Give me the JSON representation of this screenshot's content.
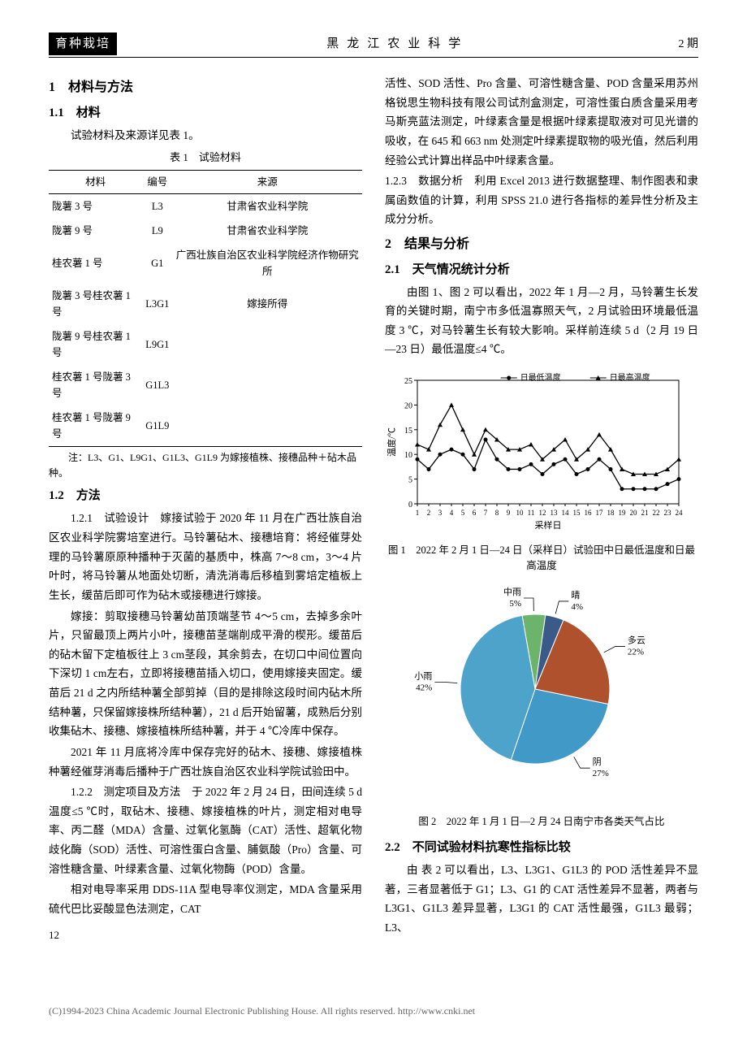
{
  "header": {
    "section": "育种栽培",
    "journal": "黑龙江农业科学",
    "issue": "2 期"
  },
  "left": {
    "h1": "1　材料与方法",
    "h2_1": "1.1　材料",
    "p_materials_intro": "试验材料及来源详见表 1。",
    "table1": {
      "caption": "表 1　试验材料",
      "columns": [
        "材料",
        "编号",
        "来源"
      ],
      "rows": [
        [
          "陇薯 3 号",
          "L3",
          "甘肃省农业科学院"
        ],
        [
          "陇薯 9 号",
          "L9",
          "甘肃省农业科学院"
        ],
        [
          "桂农薯 1 号",
          "G1",
          "广西壮族自治区农业科学院经济作物研究所"
        ],
        [
          "陇薯 3 号桂农薯 1 号",
          "L3G1",
          "嫁接所得"
        ],
        [
          "陇薯 9 号桂农薯 1 号",
          "L9G1",
          ""
        ],
        [
          "桂农薯 1 号陇薯 3 号",
          "G1L3",
          ""
        ],
        [
          "桂农薯 1 号陇薯 9 号",
          "G1L9",
          ""
        ]
      ],
      "note": "注：L3、G1、L9G1、G1L3、G1L9 为嫁接植株、接穗品种＋砧木品种。"
    },
    "h2_2": "1.2　方法",
    "p121": "1.2.1　试验设计　嫁接试验于 2020 年 11 月在广西壮族自治区农业科学院雾培室进行。马铃薯砧木、接穗培育：将经催芽处理的马铃薯原原种播种于灭菌的基质中，株高 7～8 cm，3～4 片叶时，将马铃薯从地面处切断，清洗消毒后移植到雾培定植板上生长，缓苗后即可作为砧木或接穗进行嫁接。",
    "p121b": "嫁接：剪取接穗马铃薯幼苗顶端茎节 4～5 cm，去掉多余叶片，只留最顶上两片小叶，接穗苗茎端削成平滑的楔形。缓苗后的砧木留下定植板往上 3 cm茎段，其余剪去，在切口中间位置向下深切 1 cm左右，立即将接穗苗插入切口，使用嫁接夹固定。缓苗后 21 d 之内所结种薯全部剪掉（目的是排除这段时间内砧木所结种薯，只保留嫁接株所结种薯），21 d 后开始留薯，成熟后分别收集砧木、接穗、嫁接植株所结种薯，并于 4 ℃冷库中保存。",
    "p121c": "2021 年 11 月底将冷库中保存完好的砧木、接穗、嫁接植株种薯经催芽消毒后播种于广西壮族自治区农业科学院试验田中。",
    "p122": "1.2.2　测定项目及方法　于 2022 年 2 月 24 日，田间连续 5 d 温度≤5 ℃时，取砧木、接穗、嫁接植株的叶片，测定相对电导率、丙二醛（MDA）含量、过氧化氢酶（CAT）活性、超氧化物歧化酶（SOD）活性、可溶性蛋白含量、脯氨酸（Pro）含量、可溶性糖含量、叶绿素含量、过氧化物酶（POD）含量。",
    "p122b": "相对电导率采用 DDS-11A 型电导率仪测定，MDA 含量采用硫代巴比妥酸显色法测定，CAT",
    "pagenum": "12"
  },
  "right": {
    "p_cont": "活性、SOD 活性、Pro 含量、可溶性糖含量、POD 含量采用苏州格锐思生物科技有限公司试剂盒测定，可溶性蛋白质含量采用考马斯亮蓝法测定，叶绿素含量是根据叶绿素提取液对可见光谱的吸收，在 645 和 663 nm 处测定叶绿素提取物的吸光值，然后利用经验公式计算出样品中叶绿素含量。",
    "p123": "1.2.3　数据分析　利用 Excel 2013 进行数据整理、制作图表和隶属函数值的计算，利用 SPSS 21.0 进行各指标的差异性分析及主成分分析。",
    "h1_2": "2　结果与分析",
    "h2_21": "2.1　天气情况统计分析",
    "p21": "由图 1、图 2 可以看出，2022 年 1 月—2 月，马铃薯生长发育的关键时期，南宁市多低温寡照天气，2 月试验田环境最低温度 3 ℃，对马铃薯生长有较大影响。采样前连续 5 d（2 月 19 日—23 日）最低温度≤4 ℃。",
    "fig1": {
      "legend_low": "日最低温度",
      "legend_high": "日最高温度",
      "ylabel": "温度/℃",
      "xlabel": "采样日",
      "caption": "图 1　2022 年 2 月 1 日—24 日（采样日）试验田中日最低温度和日最高温度",
      "ylim": [
        0,
        25
      ],
      "yticks": [
        0,
        5,
        10,
        15,
        20,
        25
      ],
      "xdays": [
        1,
        2,
        3,
        4,
        5,
        6,
        7,
        8,
        9,
        10,
        11,
        12,
        13,
        14,
        15,
        16,
        17,
        18,
        19,
        20,
        21,
        22,
        23,
        24
      ],
      "low": [
        9,
        7,
        10,
        11,
        10,
        7,
        13,
        9,
        7,
        7,
        8,
        6,
        8,
        9,
        6,
        7,
        9,
        7,
        3,
        3,
        3,
        3,
        4,
        5
      ],
      "high": [
        12,
        11,
        16,
        20,
        15,
        10,
        15,
        13,
        11,
        11,
        12,
        9,
        11,
        13,
        9,
        11,
        14,
        11,
        7,
        6,
        6,
        6,
        7,
        9
      ],
      "line_color": "#000000",
      "grid_color": "#ffffff",
      "bg_color": "#ffffff",
      "fontsize": 10
    },
    "fig2": {
      "caption": "图 2　2022 年 1 月 1 日—2 月 24 日南宁市各类天气占比",
      "slices": [
        {
          "label": "小雨",
          "value": 42,
          "color": "#4da3c9"
        },
        {
          "label": "阴",
          "value": 27,
          "color": "#4199c7"
        },
        {
          "label": "多云",
          "value": 22,
          "color": "#b0512d"
        },
        {
          "label": "中雨",
          "value": 5,
          "color": "#6cb36c"
        },
        {
          "label": "晴",
          "value": 4,
          "color": "#3a5a8a"
        }
      ],
      "stroke": "#ffffff",
      "fontsize": 11
    },
    "h2_22": "2.2　不同试验材料抗寒性指标比较",
    "p22": "由 表 2 可以看出，L3、L3G1、G1L3 的 POD 活性差异不显著，三者显著低于 G1；L3、G1 的 CAT 活性差异不显著，两者与 L3G1、G1L3 差异显著，L3G1 的 CAT 活性最强，G1L3 最弱；L3、"
  },
  "footer": "(C)1994-2023 China Academic Journal Electronic Publishing House. All rights reserved.    http://www.cnki.net"
}
